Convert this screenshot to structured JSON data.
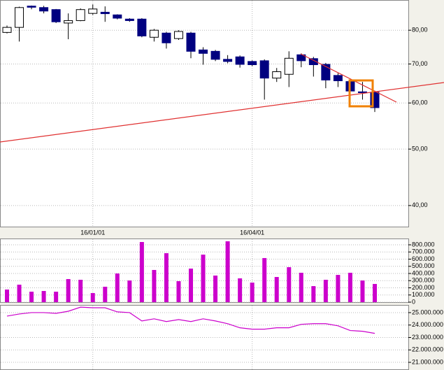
{
  "chart_data": [
    {
      "type": "candlestick",
      "log": true,
      "grid": true,
      "up_color": "#ffffff",
      "down_color": "#000080",
      "categories": [
        null,
        null,
        null,
        null,
        null,
        null,
        null,
        "16/01/01",
        null,
        null,
        null,
        null,
        null,
        null,
        null,
        null,
        null,
        null,
        null,
        null,
        "16/04/01",
        null,
        null,
        null,
        null,
        null,
        null,
        null,
        null,
        null,
        null
      ],
      "open": [
        79.3,
        80.9,
        88.0,
        87.5,
        86.8,
        82.3,
        83.1,
        85.5,
        85.9,
        85.0,
        83.6,
        83.6,
        77.8,
        79.1,
        77.4,
        79.1,
        74.0,
        73.6,
        71.3,
        72.0,
        70.7,
        70.9,
        66.2,
        67.2,
        72.6,
        71.5,
        69.9,
        66.9,
        65.3,
        62.7,
        62.6
      ],
      "high": [
        81.5,
        87.8,
        88.2,
        88.1,
        87.0,
        85.5,
        87.2,
        88.6,
        87.9,
        85.2,
        83.9,
        83.9,
        80.4,
        79.5,
        80.0,
        79.5,
        74.8,
        74.0,
        72.5,
        72.4,
        71.0,
        71.3,
        68.9,
        73.6,
        73.0,
        72.0,
        70.3,
        67.5,
        65.9,
        65.2,
        63.0
      ],
      "low": [
        79.0,
        76.5,
        86.9,
        85.5,
        82.3,
        77.2,
        82.9,
        85.0,
        82.7,
        83.5,
        82.7,
        77.8,
        76.5,
        74.4,
        77.0,
        71.6,
        69.8,
        70.8,
        70.2,
        69.0,
        69.4,
        60.8,
        65.2,
        63.9,
        69.1,
        66.6,
        63.6,
        63.9,
        62.6,
        60.8,
        57.9
      ],
      "close": [
        80.9,
        87.5,
        87.6,
        86.3,
        82.7,
        83.1,
        86.8,
        87.0,
        85.4,
        83.9,
        83.1,
        78.2,
        80.0,
        76.1,
        79.6,
        73.6,
        73.0,
        71.3,
        70.7,
        69.9,
        69.8,
        66.2,
        67.9,
        71.6,
        70.9,
        69.8,
        65.7,
        65.5,
        62.9,
        62.5,
        58.9
      ],
      "ylim": [
        36.8,
        89.9
      ],
      "yticks": [
        {
          "value": 80,
          "label": "80,00"
        },
        {
          "value": 70,
          "label": "70,00"
        },
        {
          "value": 60,
          "label": "60,00"
        },
        {
          "value": 50,
          "label": "50,00"
        },
        {
          "value": 40,
          "label": "40,00"
        }
      ]
    },
    {
      "type": "bar",
      "color": "#cc00cc",
      "grid": true,
      "values": [
        176000,
        244000,
        146000,
        156000,
        146000,
        322000,
        312000,
        127000,
        215000,
        400000,
        302000,
        839000,
        449000,
        683000,
        293000,
        468000,
        663000,
        371000,
        849000,
        332000,
        273000,
        615000,
        351000,
        488000,
        410000,
        224000,
        312000,
        380000,
        410000,
        302000,
        254000
      ],
      "ylim": [
        0,
        878000
      ],
      "yticks": [
        0,
        {
          "value": 100000,
          "label": "100.000"
        },
        {
          "value": 200000,
          "label": "200.000"
        },
        {
          "value": 300000,
          "label": "300.000"
        },
        {
          "value": 400000,
          "label": "400.000"
        },
        {
          "value": 500000,
          "label": "500.000"
        },
        {
          "value": 600000,
          "label": "600.000"
        },
        {
          "value": 700000,
          "label": "700.000"
        },
        {
          "value": 800000,
          "label": "800.000"
        }
      ]
    },
    {
      "type": "line",
      "color": "#cc00cc",
      "grid": true,
      "values": [
        24720000,
        24890000,
        25000000,
        25000000,
        24940000,
        25110000,
        25440000,
        25390000,
        25390000,
        25060000,
        25000000,
        24330000,
        24500000,
        24280000,
        24440000,
        24280000,
        24500000,
        24330000,
        24110000,
        23780000,
        23670000,
        23670000,
        23780000,
        23780000,
        24060000,
        24110000,
        24110000,
        23940000,
        23560000,
        23500000,
        23330000
      ],
      "ylim": [
        20440000,
        25560000
      ],
      "yticks": [
        {
          "value": 21000000,
          "label": "21.000.000"
        },
        {
          "value": 22000000,
          "label": "22.000.000"
        },
        {
          "value": 23000000,
          "label": "23.000.000"
        },
        {
          "value": 24000000,
          "label": "24.000.000"
        },
        {
          "value": 25000000,
          "label": "25.000.000"
        }
      ]
    }
  ]
}
